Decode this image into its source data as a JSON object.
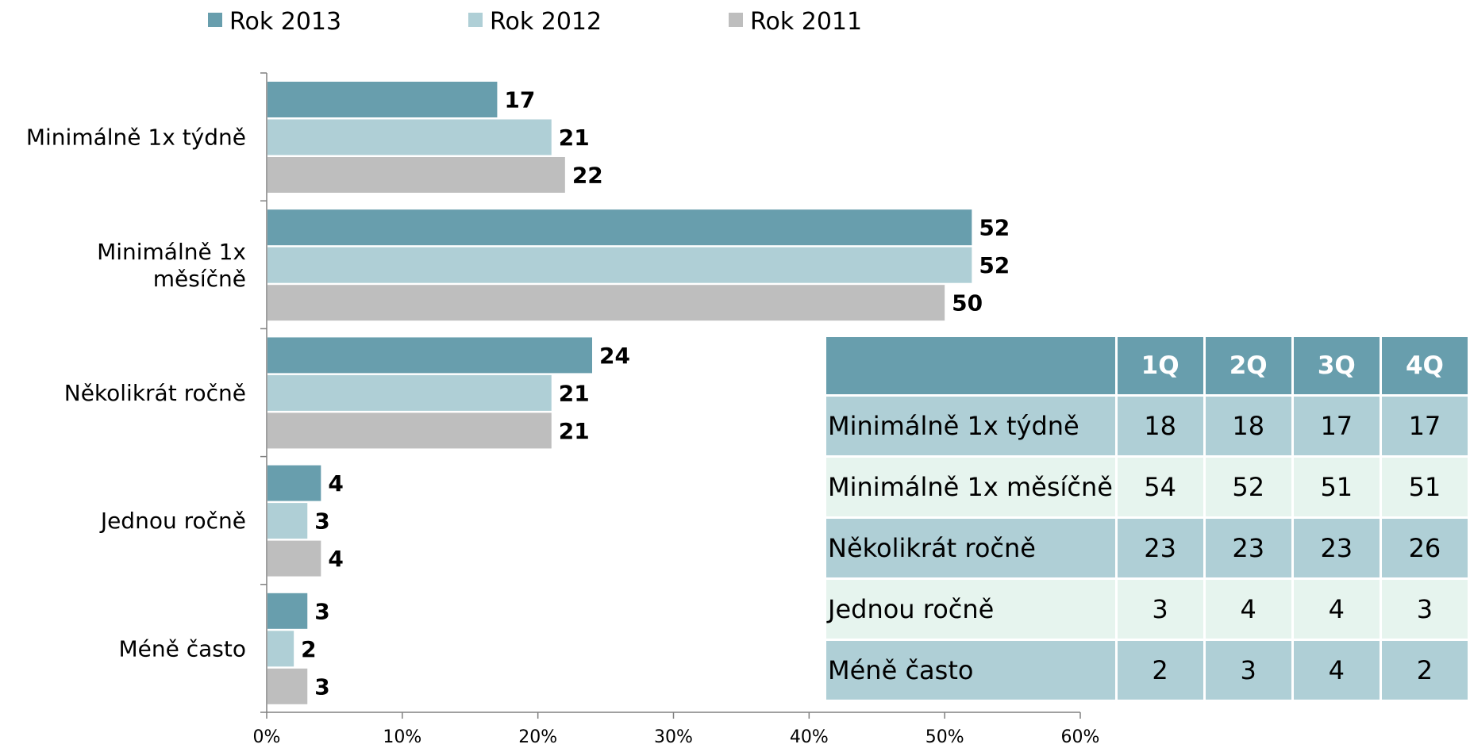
{
  "chart_data": {
    "type": "bar",
    "orientation": "horizontal",
    "categories": [
      [
        "Minimálně 1x týdně"
      ],
      [
        "Minimálně 1x",
        "měsíčně"
      ],
      [
        "Několikrát ročně"
      ],
      [
        "Jednou ročně"
      ],
      [
        "Méně často"
      ]
    ],
    "series": [
      {
        "name": "Rok 2013",
        "color": "#689ead",
        "values": [
          17,
          52,
          24,
          4,
          3
        ]
      },
      {
        "name": "Rok 2012",
        "color": "#afcfd6",
        "values": [
          21,
          52,
          21,
          3,
          2
        ]
      },
      {
        "name": "Rok 2011",
        "color": "#bebebe",
        "values": [
          22,
          50,
          21,
          4,
          3
        ]
      }
    ],
    "xlim": [
      0,
      60
    ],
    "xticks": [
      "0%",
      "10%",
      "20%",
      "30%",
      "40%",
      "50%",
      "60%"
    ],
    "legend_position": "top",
    "grid": false
  },
  "quarter_table": {
    "header": [
      "",
      "1Q",
      "2Q",
      "3Q",
      "4Q"
    ],
    "header_color": "#689ead",
    "rows": [
      {
        "label": "Minimálně 1x týdně",
        "values": [
          "18",
          "18",
          "17",
          "17"
        ]
      },
      {
        "label": "Minimálně 1x měsíčně",
        "values": [
          "54",
          "52",
          "51",
          "51"
        ]
      },
      {
        "label": "Několikrát ročně",
        "values": [
          "23",
          "23",
          "23",
          "26"
        ]
      },
      {
        "label": "Jednou ročně",
        "values": [
          "3",
          "4",
          "4",
          "3"
        ]
      },
      {
        "label": "Méně často",
        "values": [
          "2",
          "3",
          "4",
          "2"
        ]
      }
    ]
  }
}
